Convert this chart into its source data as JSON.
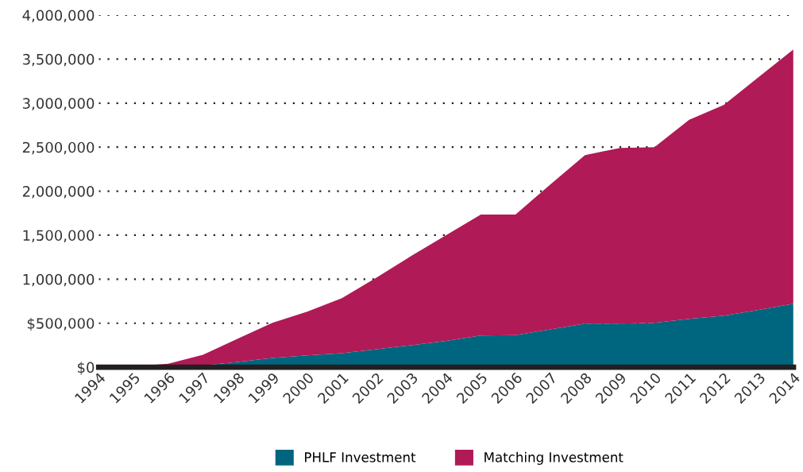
{
  "chart_data": {
    "type": "area",
    "stacked": true,
    "categories": [
      "1994",
      "1995",
      "1996",
      "1997",
      "1998",
      "1999",
      "2000",
      "2001",
      "2002",
      "2003",
      "2004",
      "2005",
      "2006",
      "2007",
      "2008",
      "2009",
      "2010",
      "2011",
      "2012",
      "2013",
      "2014"
    ],
    "series": [
      {
        "name": "PHLF Investment",
        "color": "#00667f",
        "values": [
          0,
          0,
          10000,
          20000,
          60000,
          105000,
          135000,
          160000,
          205000,
          250000,
          300000,
          360000,
          365000,
          430000,
          495000,
          495000,
          505000,
          550000,
          585000,
          650000,
          720000
        ]
      },
      {
        "name": "Matching Investment",
        "color": "#b01a56",
        "values": [
          0,
          10000,
          30000,
          120000,
          265000,
          400000,
          495000,
          625000,
          815000,
          1015000,
          1200000,
          1375000,
          1370000,
          1645000,
          1915000,
          1995000,
          1995000,
          2260000,
          2395000,
          2645000,
          2890000
        ]
      }
    ],
    "ylim": [
      0,
      4000000
    ],
    "yticks": [
      {
        "value": 0,
        "label": "$0"
      },
      {
        "value": 500000,
        "label": "$500,000"
      },
      {
        "value": 1000000,
        "label": "1,000,000"
      },
      {
        "value": 1500000,
        "label": "1,500,000"
      },
      {
        "value": 2000000,
        "label": "2,000,000"
      },
      {
        "value": 2500000,
        "label": "2,500,000"
      },
      {
        "value": 3000000,
        "label": "3,000,000"
      },
      {
        "value": 3500000,
        "label": "3,500,000"
      },
      {
        "value": 4000000,
        "label": "4,000,000"
      }
    ],
    "grid": "y",
    "legend": "bottom"
  }
}
